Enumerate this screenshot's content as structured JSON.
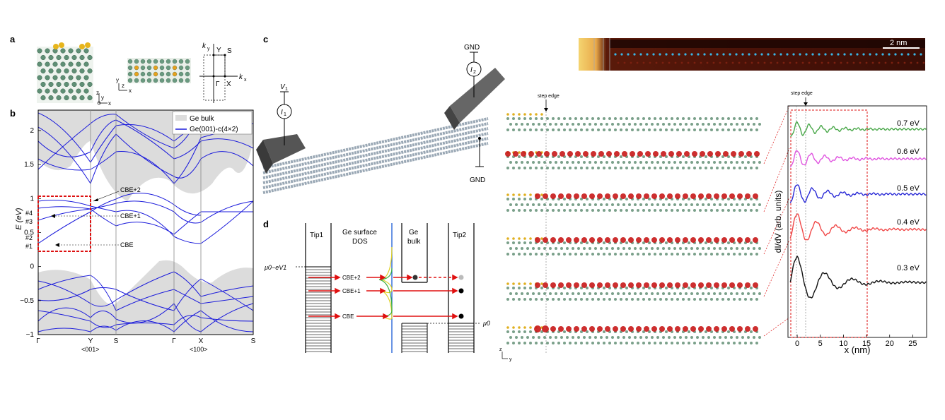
{
  "panels": {
    "a": "a",
    "b": "b",
    "c": "c",
    "d": "d"
  },
  "panel_a": {
    "axes_left": {
      "z": "z",
      "y": "y",
      "x": "x"
    },
    "axes_mid": {
      "y": "y",
      "z": "z",
      "x": "x"
    },
    "bz": {
      "ky": "k",
      "ky_sub": "y",
      "kx": "k",
      "kx_sub": "x",
      "Y": "Y",
      "S": "S",
      "Gamma": "Γ",
      "X": "X"
    }
  },
  "panel_b": {
    "ylabel": "E (eV)",
    "yticks": [
      "2",
      "1.5",
      "1",
      "0.5",
      "0",
      "−0.5",
      "−1"
    ],
    "xticks": [
      "Γ",
      "Y",
      "S",
      "Γ",
      "X",
      "S"
    ],
    "xsub": [
      "<001>",
      "<100>"
    ],
    "legend": [
      "Ge bulk",
      "Ge(001)-c(4×2)"
    ],
    "levels": [
      "#4",
      "#3",
      "#2",
      "#1"
    ],
    "annotations": [
      "CBE+2",
      "CBE+1",
      "CBE"
    ],
    "colors": {
      "bulk": "#dcdcdc",
      "bands": "#1a1adb",
      "box": "#dd1111"
    }
  },
  "panel_c": {
    "V1": "V",
    "V1_sub": "1",
    "I1": "I",
    "I1_sub": "1",
    "I2": "I",
    "I2_sub": "2",
    "gnd_top": "GND",
    "gnd_bottom": "GND"
  },
  "panel_d": {
    "tip1": "Tip1",
    "ge_surface": [
      "Ge surface",
      "DOS"
    ],
    "ge_bulk": [
      "Ge",
      "bulk"
    ],
    "tip2": "Tip2",
    "mu_ev": "μ0−eV1",
    "mu0": "μ0",
    "arrows": [
      "CBE+2",
      "CBE+1",
      "CBE"
    ]
  },
  "stm_image": {
    "scale": "2 nm"
  },
  "structures": {
    "step_edge": "step edge",
    "axes": {
      "z": "z",
      "y": "y"
    }
  },
  "spectra": {
    "step_edge": "step edge",
    "xlabel": "x (nm)",
    "ylabel": "dI/dV (arb. units)",
    "xticks": [
      "0",
      "5",
      "10",
      "15",
      "20",
      "25"
    ],
    "series": [
      {
        "name": "0.7 eV",
        "color": "#4aa84a"
      },
      {
        "name": "0.6 eV",
        "color": "#e055e0"
      },
      {
        "name": "0.5 eV",
        "color": "#2a2ad6"
      },
      {
        "name": "0.4 eV",
        "color": "#f04848"
      },
      {
        "name": "0.3 eV",
        "color": "#111111"
      }
    ]
  }
}
